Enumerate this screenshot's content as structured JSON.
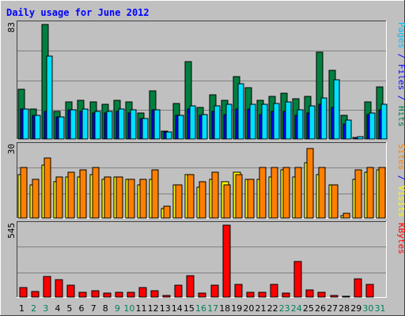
{
  "chart_data": {
    "type": "bar",
    "title": "Daily usage for June 2012",
    "days": [
      1,
      2,
      3,
      4,
      5,
      6,
      7,
      8,
      9,
      10,
      11,
      12,
      13,
      14,
      15,
      16,
      17,
      18,
      19,
      20,
      21,
      22,
      23,
      24,
      25,
      26,
      27,
      28,
      29,
      30,
      31
    ],
    "weekend_days": [
      2,
      3,
      9,
      10,
      16,
      17,
      23,
      24,
      30,
      31
    ],
    "panels": [
      {
        "id": "hits-files-pages",
        "max_label": "83",
        "ymax": 83,
        "legend": [
          {
            "text": "Pages",
            "color": "#00c0ff"
          },
          {
            "text": " / ",
            "color": "#0000ff"
          },
          {
            "text": "Files",
            "color": "#0000ff"
          },
          {
            "text": " / ",
            "color": "#0000ff"
          },
          {
            "text": "Hits",
            "color": "#008040"
          }
        ],
        "series": [
          {
            "name": "Hits",
            "color": "#008040",
            "values": [
              36,
              22,
              83,
              20,
              27,
              28,
              27,
              25,
              28,
              27,
              19,
              35,
              6,
              26,
              56,
              23,
              32,
              28,
              45,
              37,
              28,
              31,
              33,
              29,
              31,
              63,
              50,
              17,
              1,
              27,
              38
            ]
          },
          {
            "name": "Files",
            "color": "#0000ff",
            "values": [
              22,
              17,
              20,
              16,
              21,
              20,
              19,
              19,
              20,
              19,
              15,
              21,
              5,
              17,
              22,
              17,
              20,
              18,
              22,
              22,
              18,
              20,
              20,
              17,
              19,
              25,
              23,
              11,
              1,
              18,
              21
            ]
          },
          {
            "name": "Pages",
            "color": "#00e0ff",
            "values": [
              22,
              17,
              60,
              16,
              21,
              22,
              20,
              20,
              22,
              21,
              15,
              21,
              5,
              17,
              24,
              18,
              24,
              25,
              40,
              25,
              25,
              26,
              27,
              21,
              24,
              30,
              43,
              14,
              2,
              19,
              25
            ]
          }
        ]
      },
      {
        "id": "visits-sites",
        "max_label": "30",
        "ymax": 30,
        "legend": [
          {
            "text": "Sites",
            "color": "#ff8000"
          },
          {
            "text": " / ",
            "color": "#0000ff"
          },
          {
            "text": "Visits",
            "color": "#ffff00"
          }
        ],
        "series": [
          {
            "name": "Visits",
            "color": "#ffff00",
            "values": [
              18,
              14,
              22,
              15,
              17,
              17,
              18,
              16,
              17,
              16,
              14,
              16,
              4,
              14,
              18,
              13,
              16,
              15,
              19,
              16,
              16,
              17,
              20,
              17,
              23,
              18,
              14,
              1,
              16,
              19,
              20
            ]
          },
          {
            "name": "Sites",
            "color": "#ff8000",
            "values": [
              21,
              16,
              25,
              17,
              19,
              20,
              21,
              17,
              17,
              16,
              16,
              20,
              5,
              14,
              18,
              15,
              19,
              14,
              18,
              16,
              21,
              21,
              21,
              21,
              29,
              21,
              14,
              2,
              20,
              21,
              21
            ]
          }
        ]
      },
      {
        "id": "kbytes",
        "max_label": "545",
        "ymax": 545,
        "legend": [
          {
            "text": "KBytes",
            "color": "#ff0000"
          }
        ],
        "series": [
          {
            "name": "KBytes",
            "color": "#ff0000",
            "values": [
              74,
              41,
              155,
              130,
              89,
              33,
              49,
              29,
              36,
              33,
              72,
              49,
              13,
              88,
              164,
              31,
              92,
              545,
              94,
              37,
              37,
              95,
              32,
              268,
              54,
              37,
              13,
              3,
              135,
              93,
              0
            ]
          }
        ]
      }
    ]
  },
  "colors": {
    "background": "#c0c0c0",
    "plot_background": "#c0c0c0",
    "grid": "#808080",
    "day_label": "#000000",
    "weekend_label": "#00805c",
    "title": "#0000ff"
  }
}
